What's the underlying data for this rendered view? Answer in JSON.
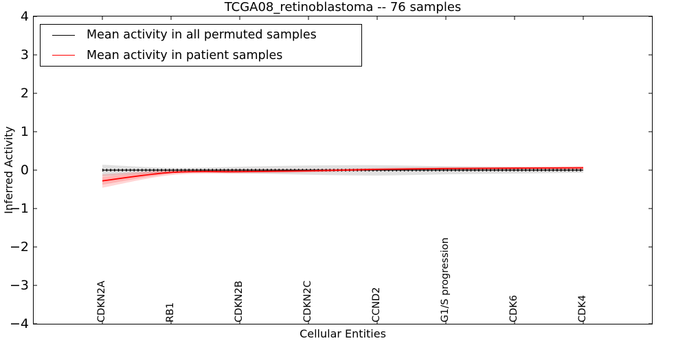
{
  "figure": {
    "background": "#ffffff",
    "frame_color": "#000000"
  },
  "chart_data": {
    "type": "line",
    "title": "TCGA08_retinoblastoma -- 76 samples",
    "xlabel": "Cellular Entities",
    "ylabel": "Inferred Activity",
    "xlim": [
      0,
      9
    ],
    "ylim": [
      -4,
      4
    ],
    "yticks": [
      4,
      3,
      2,
      1,
      0,
      -1,
      -2,
      -3,
      -4
    ],
    "ytick_labels": [
      "4",
      "3",
      "2",
      "1",
      "0",
      "−1",
      "−2",
      "−3",
      "−4"
    ],
    "grid": false,
    "legend_position": "upper left",
    "categories": [
      "CDKN2A",
      "RB1",
      "CDKN2B",
      "CDKN2C",
      "CCND2",
      "G1/S progression",
      "CDK6",
      "CDK4"
    ],
    "x": [
      1,
      2,
      3,
      4,
      5,
      6,
      7,
      8
    ],
    "series": [
      {
        "name": "Mean activity in all permuted samples",
        "color": "#000000",
        "marker": "tick-markers-along-line",
        "values": [
          0,
          0,
          0,
          0,
          0,
          0,
          0,
          0
        ],
        "band_low": [
          -0.16,
          -0.06,
          -0.08,
          -0.12,
          -0.14,
          -0.11,
          -0.09,
          -0.07
        ],
        "band_high": [
          0.14,
          0.06,
          0.09,
          0.12,
          0.13,
          0.1,
          0.08,
          0.07
        ],
        "band_color": "#000000",
        "band_opacity": 0.12
      },
      {
        "name": "Mean activity in patient samples",
        "color": "#ff0000",
        "values": [
          -0.28,
          -0.06,
          -0.04,
          -0.02,
          0.02,
          0.04,
          0.05,
          0.06
        ],
        "band_low": [
          -0.46,
          -0.13,
          -0.09,
          -0.06,
          -0.02,
          0.0,
          0.01,
          0.01
        ],
        "band_high": [
          -0.11,
          0.0,
          0.02,
          0.03,
          0.06,
          0.08,
          0.09,
          0.1
        ],
        "band2_low": [
          -0.38,
          -0.1,
          -0.06,
          -0.04,
          0.0,
          0.02,
          0.03,
          0.03
        ],
        "band2_high": [
          -0.18,
          -0.02,
          -0.01,
          0.0,
          0.04,
          0.06,
          0.07,
          0.08
        ],
        "band_color": "#ff0000",
        "band_opacity": 0.16
      }
    ]
  }
}
